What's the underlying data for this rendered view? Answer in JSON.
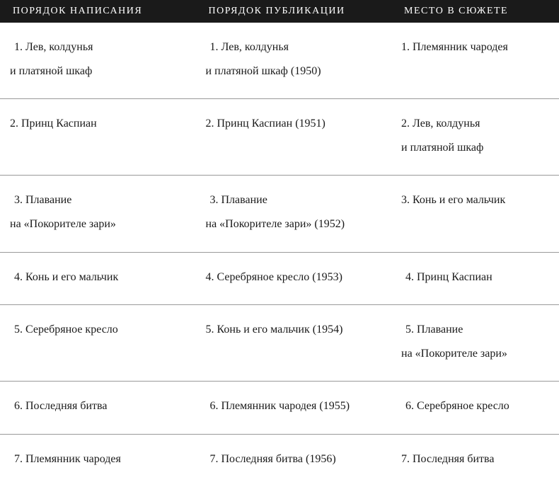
{
  "headers": {
    "col1": "ПОРЯДОК НАПИСАНИЯ",
    "col2": "ПОРЯДОК ПУБЛИКАЦИИ",
    "col3": "МЕСТО В СЮЖЕТЕ"
  },
  "rows": [
    {
      "c1l1": " 1. Лев, колдунья",
      "c1l2": "и платяной шкаф",
      "c2l1": " 1. Лев, колдунья",
      "c2l2": "и платяной шкаф (1950)",
      "c3l1": "1. Племянник чародея",
      "c3l2": ""
    },
    {
      "c1l1": "2. Принц Каспиан",
      "c1l2": "",
      "c2l1": "2. Принц Каспиан (1951)",
      "c2l2": "",
      "c3l1": "2.  Лев, колдунья",
      "c3l2": "и платяной шкаф"
    },
    {
      "c1l1": " 3. Плавание",
      "c1l2": "на «Покорителе зари»",
      "c2l1": " 3. Плавание",
      "c2l2": "на «Покорителе зари»  (1952)",
      "c3l1": "3. Конь и его мальчик",
      "c3l2": ""
    },
    {
      "c1l1": " 4. Конь и его мальчик",
      "c1l2": "",
      "c2l1": "4. Серебряное кресло (1953)",
      "c2l2": "",
      "c3l1": "4. Принц Каспиан",
      "c3l2": ""
    },
    {
      "c1l1": " 5. Серебряное кресло",
      "c1l2": "",
      "c2l1": "5. Конь и его мальчик (1954)",
      "c2l2": "",
      "c3l1": " 5. Плавание",
      "c3l2": "на «Покорителе зари»"
    },
    {
      "c1l1": " 6. Последняя битва",
      "c1l2": "",
      "c2l1": " 6. Племянник чародея (1955)",
      "c2l2": "",
      "c3l1": "6. Серебряное кресло",
      "c3l2": ""
    },
    {
      "c1l1": " 7. Племянник чародея",
      "c1l2": "",
      "c2l1": " 7. Последняя битва (1956)",
      "c2l2": "",
      "c3l1": "7. Последняя битва",
      "c3l2": ""
    }
  ],
  "style": {
    "header_bg": "#1a1a1a",
    "header_color": "#ffffff",
    "body_bg": "#ffffff",
    "body_color": "#1a1a1a",
    "row_border": "#999999",
    "header_fontsize": 14,
    "header_letterspacing": 1.5,
    "body_fontsize": 16,
    "body_lineheight": 2.1,
    "font_family": "Georgia, 'Times New Roman', serif",
    "col_widths_pct": [
      35,
      35,
      30
    ]
  }
}
